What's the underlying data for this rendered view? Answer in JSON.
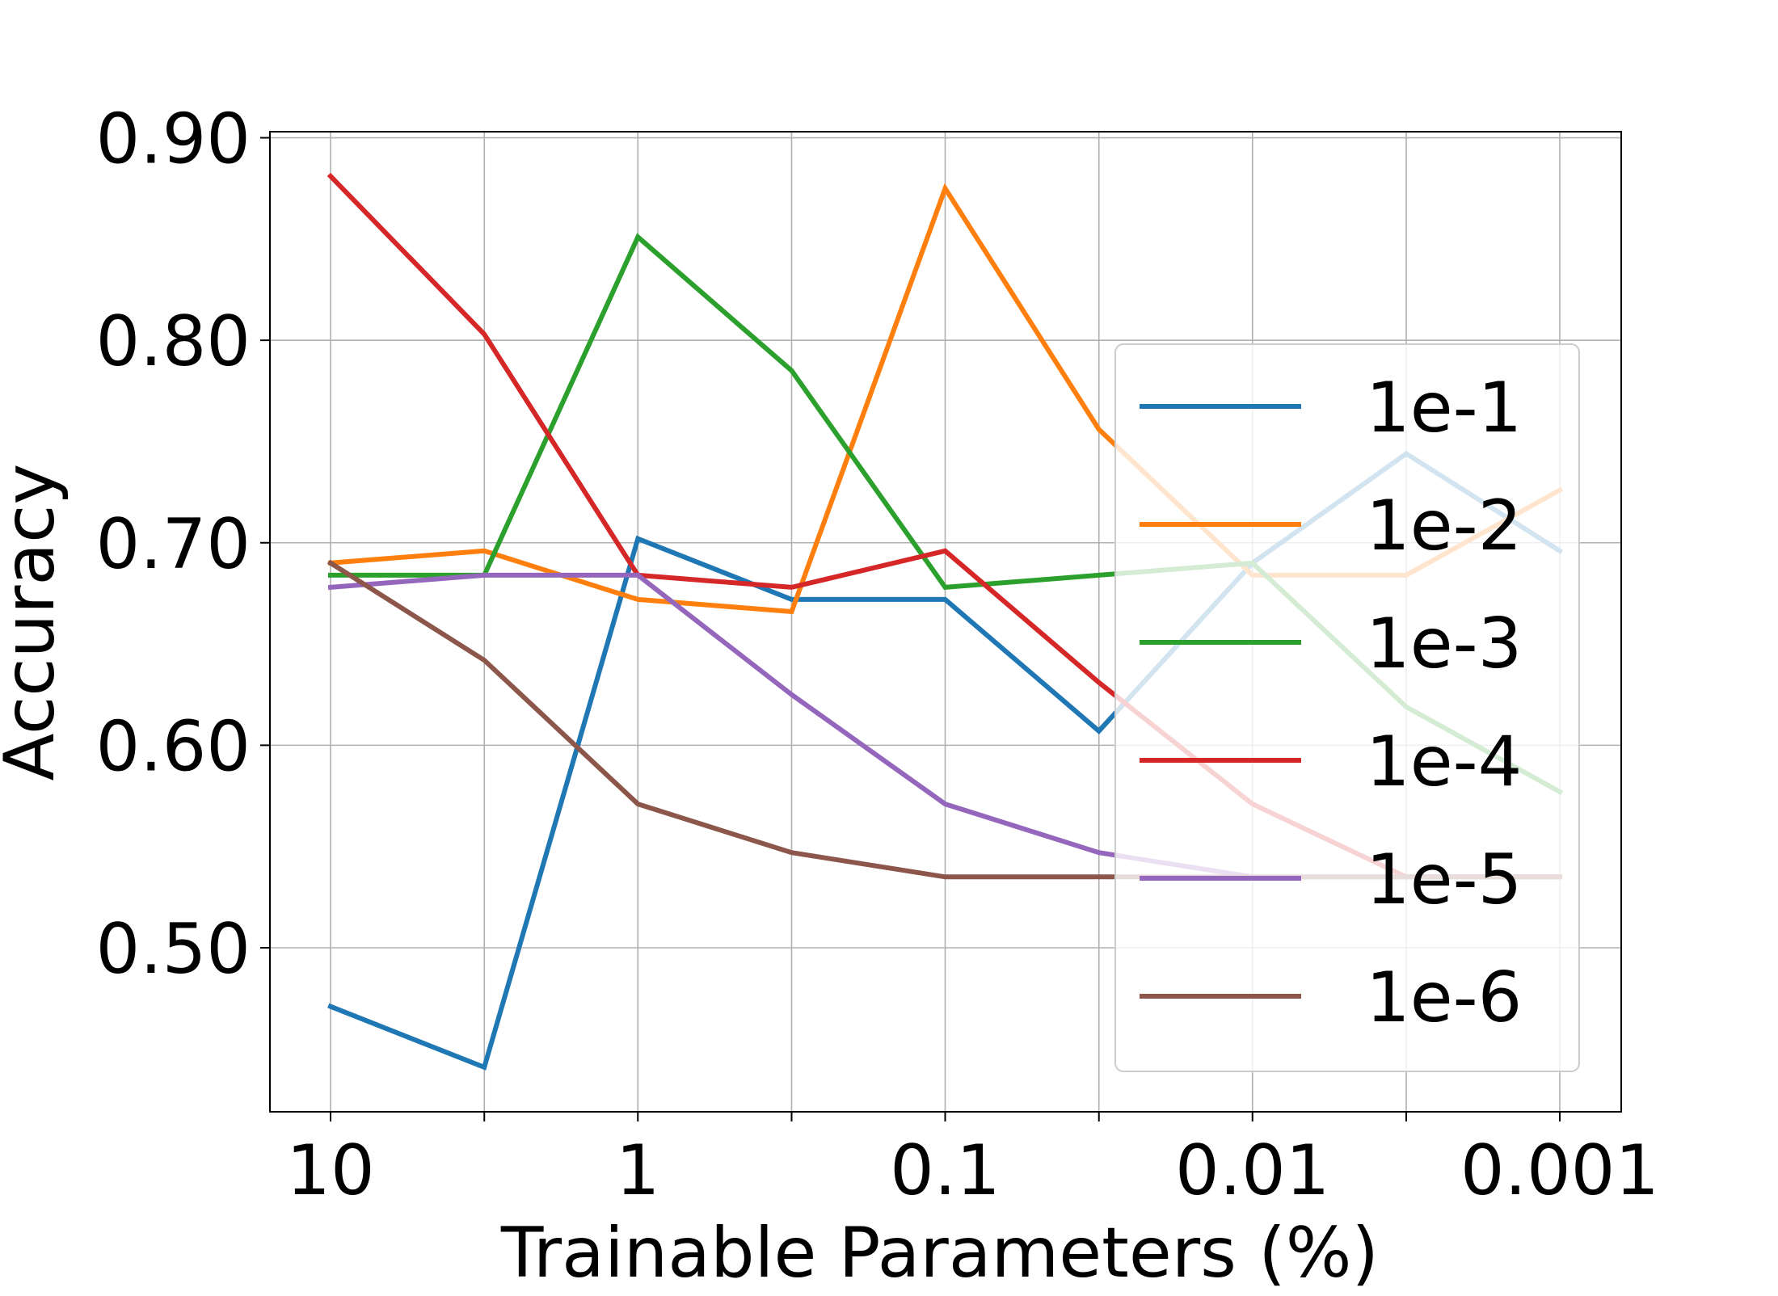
{
  "chart_data": {
    "type": "line",
    "xlabel": "Trainable Parameters (%)",
    "ylabel": "Accuracy",
    "x_scale": "log-reversed",
    "x_ticks": [
      10,
      3.16,
      1,
      0.316,
      0.1,
      0.0316,
      0.01,
      0.00316,
      0.001
    ],
    "x_tick_labels": [
      "10",
      "",
      "1",
      "",
      "0.1",
      "",
      "0.01",
      "",
      "0.001"
    ],
    "x": [
      10,
      3.16,
      1,
      0.316,
      0.1,
      0.0316,
      0.01,
      0.00316,
      0.001
    ],
    "y_ticks": [
      0.5,
      0.6,
      0.7,
      0.8,
      0.9
    ],
    "y_tick_labels": [
      "0.50",
      "0.60",
      "0.70",
      "0.80",
      "0.90"
    ],
    "ylim": [
      0.419,
      0.903
    ],
    "grid": true,
    "legend_position": "right",
    "series": [
      {
        "name": "1e-1",
        "color": "#1f77b4",
        "values": [
          0.471,
          0.441,
          0.702,
          0.672,
          0.672,
          0.607,
          0.69,
          0.744,
          0.696
        ]
      },
      {
        "name": "1e-2",
        "color": "#ff7f0e",
        "values": [
          0.69,
          0.696,
          0.672,
          0.666,
          0.875,
          0.756,
          0.684,
          0.684,
          0.726
        ]
      },
      {
        "name": "1e-3",
        "color": "#2ca02c",
        "values": [
          0.684,
          0.684,
          0.851,
          0.785,
          0.678,
          0.684,
          0.69,
          0.619,
          0.577
        ]
      },
      {
        "name": "1e-4",
        "color": "#d62728",
        "values": [
          0.881,
          0.803,
          0.684,
          0.678,
          0.696,
          0.631,
          0.571,
          0.535,
          0.535
        ]
      },
      {
        "name": "1e-5",
        "color": "#9467bd",
        "values": [
          0.678,
          0.684,
          0.684,
          0.625,
          0.571,
          0.547,
          0.535,
          0.535,
          0.535
        ]
      },
      {
        "name": "1e-6",
        "color": "#8c564b",
        "values": [
          0.69,
          0.642,
          0.571,
          0.547,
          0.535,
          0.535,
          0.535,
          0.535,
          0.535
        ]
      }
    ]
  }
}
